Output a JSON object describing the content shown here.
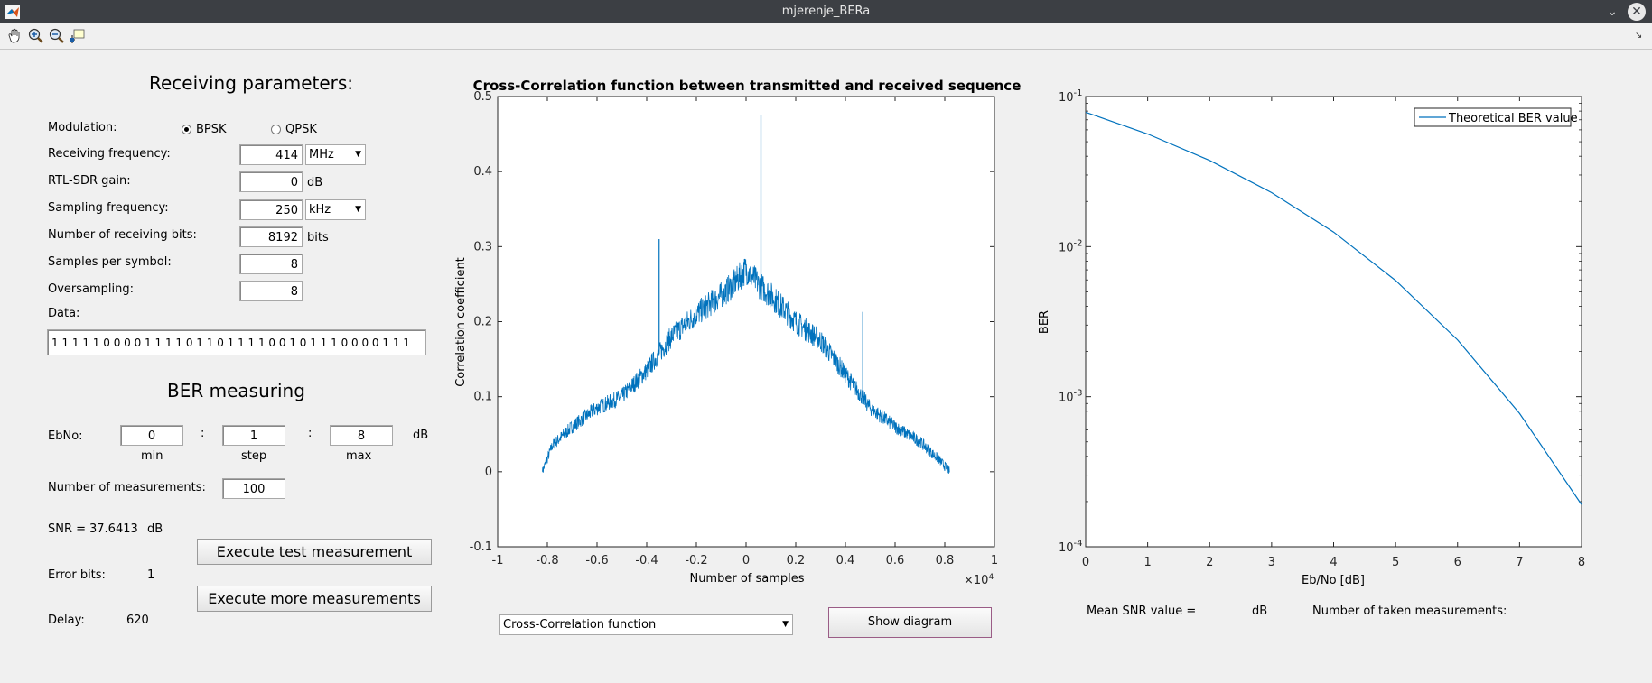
{
  "window": {
    "title": "mjerenje_BERa"
  },
  "toolbar": {
    "icons": [
      "pan-icon",
      "zoom-in-icon",
      "zoom-out-icon",
      "data-cursor-icon"
    ]
  },
  "params": {
    "heading": "Receiving parameters:",
    "modulation_label": "Modulation:",
    "bpsk_label": "BPSK",
    "qpsk_label": "QPSK",
    "selected_modulation": "BPSK",
    "rx_freq_label": "Receiving frequency:",
    "rx_freq_value": "414",
    "rx_freq_unit": "MHz",
    "gain_label": "RTL-SDR gain:",
    "gain_value": "0",
    "gain_unit": "dB",
    "fs_label": "Sampling frequency:",
    "fs_value": "250",
    "fs_unit": "kHz",
    "nbits_label": "Number of receiving bits:",
    "nbits_value": "8192",
    "nbits_unit": "bits",
    "sps_label": "Samples per symbol:",
    "sps_value": "8",
    "os_label": "Oversampling:",
    "os_value": "8",
    "data_label": "Data:",
    "data_value": "1 1 1 1 1 0 0 0 0 1 1 1 1 0 1 1 0 1 1 1 1 0 0 1 0 1 1 1 0 0 0 0 1 1 1"
  },
  "ber": {
    "heading": "BER measuring",
    "ebno_label": "EbNo:",
    "min_value": "0",
    "step_value": "1",
    "max_value": "8",
    "colon": ":",
    "unit": "dB",
    "min_label": "min",
    "step_label": "step",
    "max_label": "max",
    "nmeas_label": "Number of measurements:",
    "nmeas_value": "100",
    "snr_label": "SNR =",
    "snr_value": "37.6413",
    "snr_unit": "dB",
    "errbits_label": "Error bits:",
    "errbits_value": "1",
    "delay_label": "Delay:",
    "delay_value": "620",
    "exec_test_label": "Execute test measurement",
    "exec_more_label": "Execute more measurements"
  },
  "controls": {
    "plot_select_value": "Cross-Correlation function",
    "show_diagram_label": "Show diagram",
    "mean_snr_label": "Mean SNR value =",
    "mean_snr_unit": "dB",
    "taken_label": "Number of taken measurements:"
  },
  "colors": {
    "line": "#0072bd",
    "titlebar": "#3c3f44",
    "bg": "#f0f0f0"
  },
  "chart_data": [
    {
      "type": "line",
      "title": "Cross-Correlation function between transmitted and received sequence",
      "xlabel": "Number of samples",
      "ylabel": "Correlation coefficient",
      "xlim": [
        -1,
        1
      ],
      "x_multiplier": "×10^4",
      "ylim": [
        -0.1,
        0.5
      ],
      "xticks": [
        "-1",
        "-0.8",
        "-0.6",
        "-0.4",
        "-0.2",
        "0",
        "0.2",
        "0.4",
        "0.6",
        "0.8",
        "1"
      ],
      "yticks": [
        "-0.1",
        "0",
        "0.1",
        "0.2",
        "0.3",
        "0.4",
        "0.5"
      ],
      "x_exponent_label": "×10",
      "x_exponent": "4",
      "series": [
        {
          "x": [
            -0.82,
            -0.78,
            -0.7,
            -0.6,
            -0.5,
            -0.4,
            -0.3,
            -0.2,
            -0.1,
            -0.05,
            0,
            0.05,
            0.1,
            0.2,
            0.3,
            0.4,
            0.5,
            0.6,
            0.7,
            0.78,
            0.82
          ],
          "values": [
            0,
            0.035,
            0.06,
            0.085,
            0.1,
            0.135,
            0.18,
            0.21,
            0.235,
            0.25,
            0.27,
            0.25,
            0.235,
            0.2,
            0.175,
            0.13,
            0.085,
            0.06,
            0.04,
            0.015,
            0
          ],
          "spikes": [
            {
              "x": -0.35,
              "y": 0.31
            },
            {
              "x": 0.06,
              "y": 0.475
            },
            {
              "x": 0.47,
              "y": 0.213
            }
          ]
        }
      ],
      "grid": false
    },
    {
      "type": "line",
      "title": "",
      "xlabel": "Eb/No [dB]",
      "ylabel": "BER",
      "xlim": [
        0,
        8
      ],
      "ylim": [
        0.0001,
        0.1
      ],
      "yscale": "log",
      "xticks": [
        "0",
        "1",
        "2",
        "3",
        "4",
        "5",
        "6",
        "7",
        "8"
      ],
      "yticks_base": "10",
      "yticks_exp": [
        "-1",
        "-2",
        "-3",
        "-4"
      ],
      "legend": "top-right",
      "series": [
        {
          "name": "Theoretical BER value",
          "x": [
            0,
            1,
            2,
            3,
            4,
            5,
            6,
            7,
            8
          ],
          "values": [
            0.0786,
            0.0563,
            0.0375,
            0.0229,
            0.0125,
            0.00595,
            0.00239,
            0.000773,
            0.000191
          ]
        }
      ],
      "grid": false
    }
  ]
}
